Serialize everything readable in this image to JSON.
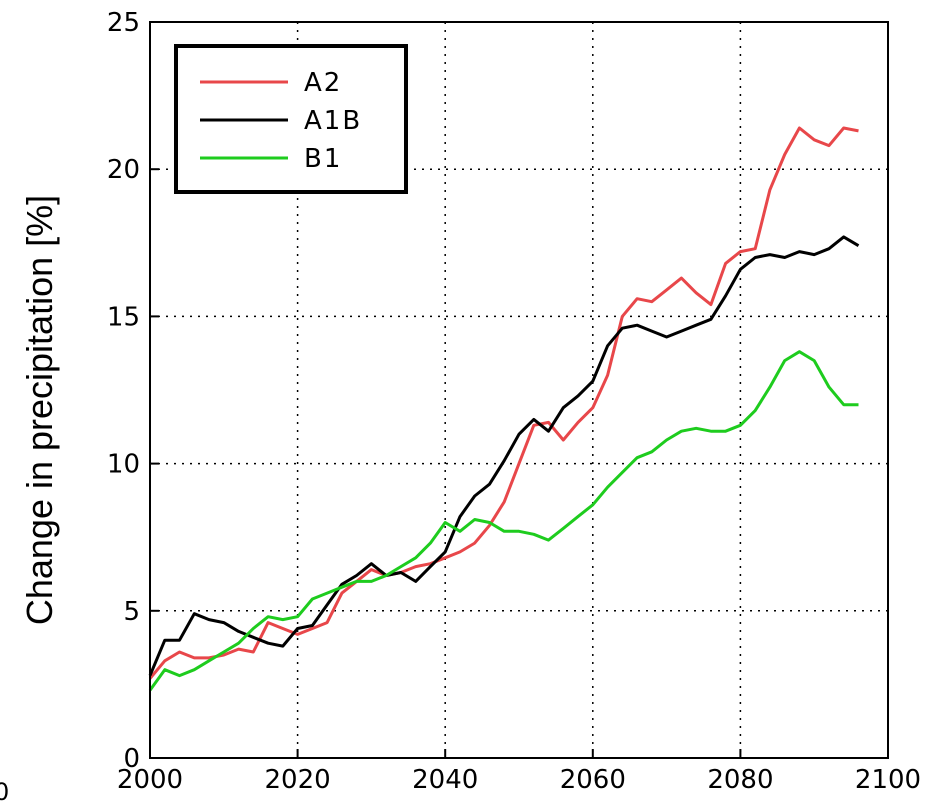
{
  "chart_data": {
    "type": "line",
    "title": "",
    "xlabel": "",
    "ylabel": "Change in precipitation [%]",
    "xlim": [
      2000,
      2100
    ],
    "ylim": [
      0,
      25
    ],
    "xticks": [
      2000,
      2020,
      2040,
      2060,
      2080,
      2100
    ],
    "yticks": [
      0,
      5,
      10,
      15,
      20,
      25
    ],
    "grid": true,
    "legend_position": "top-left",
    "stray_label": "0",
    "series": [
      {
        "name": "A2",
        "color": "#e8474a",
        "x": [
          2000,
          2002,
          2004,
          2006,
          2008,
          2010,
          2012,
          2014,
          2016,
          2018,
          2020,
          2022,
          2024,
          2026,
          2028,
          2030,
          2032,
          2034,
          2036,
          2038,
          2040,
          2042,
          2044,
          2046,
          2048,
          2050,
          2052,
          2054,
          2056,
          2058,
          2060,
          2062,
          2064,
          2066,
          2068,
          2070,
          2072,
          2074,
          2076,
          2078,
          2080,
          2082,
          2084,
          2086,
          2088,
          2090,
          2092,
          2094,
          2096
        ],
        "values": [
          2.7,
          3.3,
          3.6,
          3.4,
          3.4,
          3.5,
          3.7,
          3.6,
          4.6,
          4.4,
          4.2,
          4.4,
          4.6,
          5.6,
          6.0,
          6.4,
          6.2,
          6.3,
          6.5,
          6.6,
          6.8,
          7.0,
          7.3,
          7.9,
          8.7,
          10.0,
          11.3,
          11.4,
          10.8,
          11.4,
          11.9,
          13.0,
          15.0,
          15.6,
          15.5,
          15.9,
          16.3,
          15.8,
          15.4,
          16.8,
          17.2,
          17.3,
          19.3,
          20.5,
          21.4,
          21.0,
          20.8,
          21.4,
          21.3
        ]
      },
      {
        "name": "A1B",
        "color": "#000000",
        "x": [
          2000,
          2002,
          2004,
          2006,
          2008,
          2010,
          2012,
          2014,
          2016,
          2018,
          2020,
          2022,
          2024,
          2026,
          2028,
          2030,
          2032,
          2034,
          2036,
          2038,
          2040,
          2042,
          2044,
          2046,
          2048,
          2050,
          2052,
          2054,
          2056,
          2058,
          2060,
          2062,
          2064,
          2066,
          2068,
          2070,
          2072,
          2074,
          2076,
          2078,
          2080,
          2082,
          2084,
          2086,
          2088,
          2090,
          2092,
          2094,
          2096
        ],
        "values": [
          2.8,
          4.0,
          4.0,
          4.9,
          4.7,
          4.6,
          4.3,
          4.1,
          3.9,
          3.8,
          4.4,
          4.5,
          5.2,
          5.9,
          6.2,
          6.6,
          6.2,
          6.3,
          6.0,
          6.5,
          7.0,
          8.2,
          8.9,
          9.3,
          10.1,
          11.0,
          11.5,
          11.1,
          11.9,
          12.3,
          12.8,
          14.0,
          14.6,
          14.7,
          14.5,
          14.3,
          14.5,
          14.7,
          14.9,
          15.7,
          16.6,
          17.0,
          17.1,
          17.0,
          17.2,
          17.1,
          17.3,
          17.7,
          17.4
        ]
      },
      {
        "name": "B1",
        "color": "#1ecc1e",
        "x": [
          2000,
          2002,
          2004,
          2006,
          2008,
          2010,
          2012,
          2014,
          2016,
          2018,
          2020,
          2022,
          2024,
          2026,
          2028,
          2030,
          2032,
          2034,
          2036,
          2038,
          2040,
          2042,
          2044,
          2046,
          2048,
          2050,
          2052,
          2054,
          2056,
          2058,
          2060,
          2062,
          2064,
          2066,
          2068,
          2070,
          2072,
          2074,
          2076,
          2078,
          2080,
          2082,
          2084,
          2086,
          2088,
          2090,
          2092,
          2094,
          2096
        ],
        "values": [
          2.3,
          3.0,
          2.8,
          3.0,
          3.3,
          3.6,
          3.9,
          4.4,
          4.8,
          4.7,
          4.8,
          5.4,
          5.6,
          5.8,
          6.0,
          6.0,
          6.2,
          6.5,
          6.8,
          7.3,
          8.0,
          7.7,
          8.1,
          8.0,
          7.7,
          7.7,
          7.6,
          7.4,
          7.8,
          8.2,
          8.6,
          9.2,
          9.7,
          10.2,
          10.4,
          10.8,
          11.1,
          11.2,
          11.1,
          11.1,
          11.3,
          11.8,
          12.6,
          13.5,
          13.8,
          13.5,
          12.6,
          12.0,
          12.0
        ]
      }
    ]
  }
}
